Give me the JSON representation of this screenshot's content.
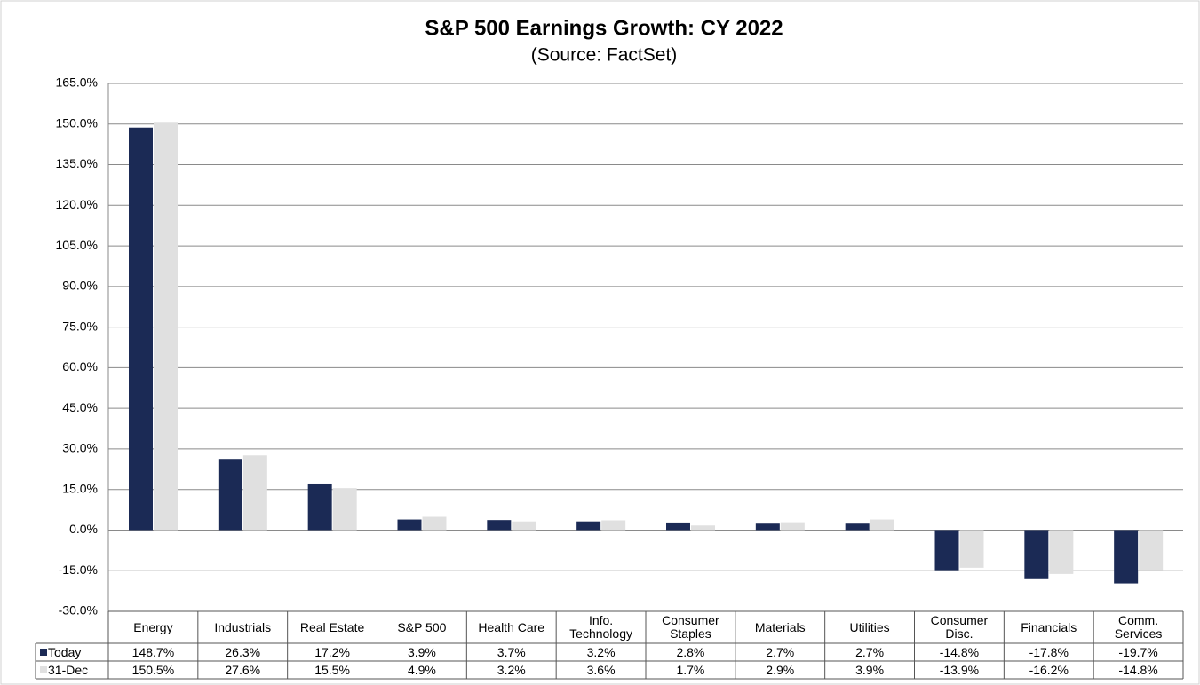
{
  "chart_data": {
    "type": "bar",
    "title": "S&P 500 Earnings Growth: CY 2022",
    "subtitle": "(Source: FactSet)",
    "categories": [
      "Energy",
      "Industrials",
      "Real Estate",
      "S&P 500",
      "Health Care",
      "Info. Technology",
      "Consumer Staples",
      "Materials",
      "Utilities",
      "Consumer Disc.",
      "Financials",
      "Comm. Services"
    ],
    "series": [
      {
        "name": "Today",
        "color": "#1b2a55",
        "values": [
          148.7,
          26.3,
          17.2,
          3.9,
          3.7,
          3.2,
          2.8,
          2.7,
          2.7,
          -14.8,
          -17.8,
          -19.7
        ],
        "value_labels": [
          "148.7%",
          "26.3%",
          "17.2%",
          "3.9%",
          "3.7%",
          "3.2%",
          "2.8%",
          "2.7%",
          "2.7%",
          "-14.8%",
          "-17.8%",
          "-19.7%"
        ]
      },
      {
        "name": "31-Dec",
        "color": "#e0e0e0",
        "values": [
          150.5,
          27.6,
          15.5,
          4.9,
          3.2,
          3.6,
          1.7,
          2.9,
          3.9,
          -13.9,
          -16.2,
          -14.8
        ],
        "value_labels": [
          "150.5%",
          "27.6%",
          "15.5%",
          "4.9%",
          "3.2%",
          "3.6%",
          "1.7%",
          "2.9%",
          "3.9%",
          "-13.9%",
          "-16.2%",
          "-14.8%"
        ]
      }
    ],
    "ylim": [
      -30,
      165
    ],
    "yticks": [
      {
        "value": -30,
        "label": "-30.0%"
      },
      {
        "value": -15,
        "label": "-15.0%"
      },
      {
        "value": 0,
        "label": "0.0%"
      },
      {
        "value": 15,
        "label": "15.0%"
      },
      {
        "value": 30,
        "label": "30.0%"
      },
      {
        "value": 45,
        "label": "45.0%"
      },
      {
        "value": 60,
        "label": "60.0%"
      },
      {
        "value": 75,
        "label": "75.0%"
      },
      {
        "value": 90,
        "label": "90.0%"
      },
      {
        "value": 105,
        "label": "105.0%"
      },
      {
        "value": 120,
        "label": "120.0%"
      },
      {
        "value": 135,
        "label": "135.0%"
      },
      {
        "value": 150,
        "label": "150.0%"
      },
      {
        "value": 165,
        "label": "165.0%"
      }
    ],
    "grid": true
  }
}
